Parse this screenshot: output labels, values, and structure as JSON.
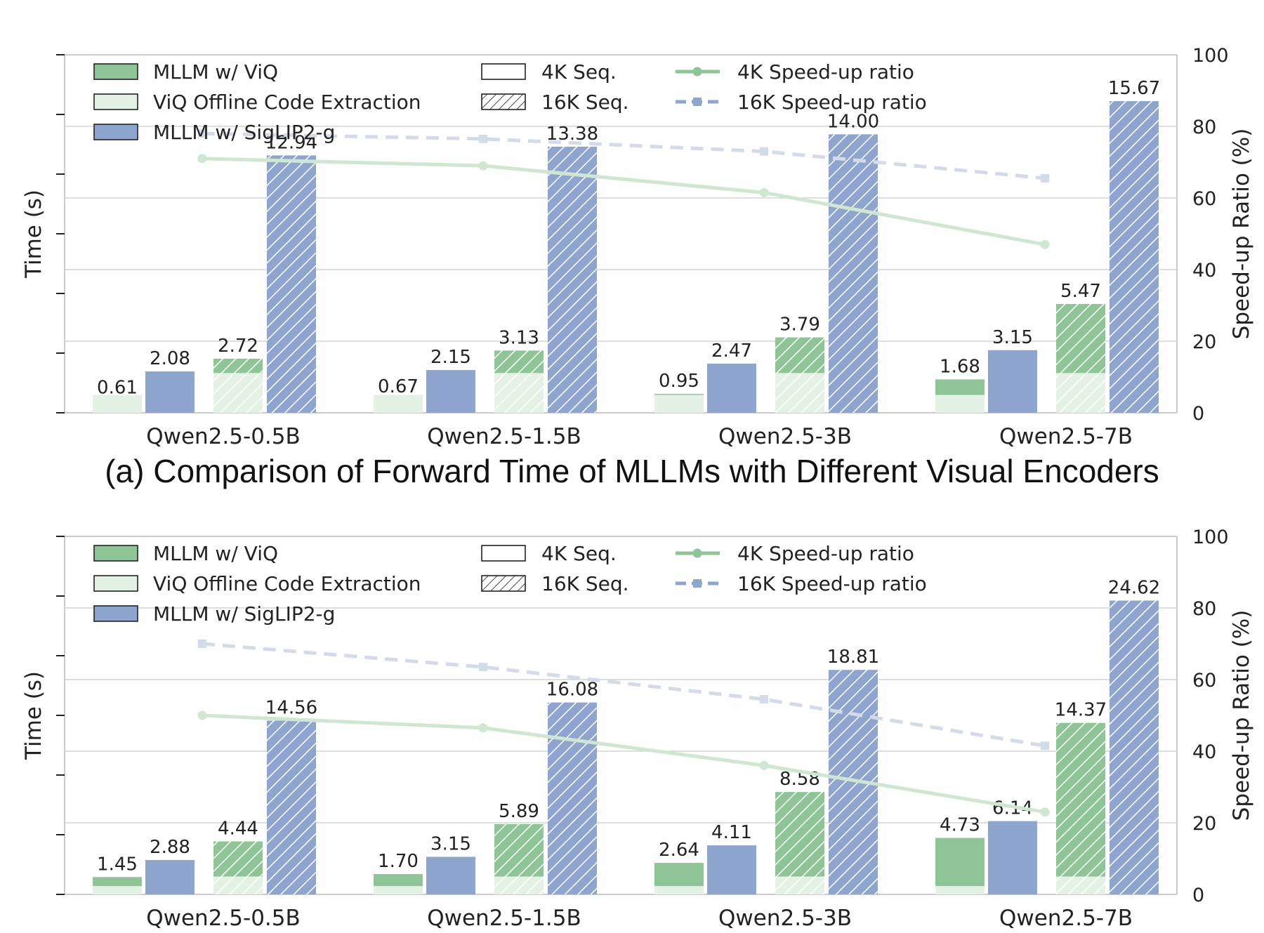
{
  "caption_a": "(a) Comparison of Forward Time of MLLMs with Different Visual Encoders",
  "colors": {
    "viq": "#8dc596",
    "viq_offline": "#e4f1e5",
    "siglip": "#8ea6cf",
    "line4k": "#cfe6d1",
    "line16k": "#d3dbe9",
    "grid": "#cccccc",
    "axis": "#bbbbbb"
  },
  "legend": {
    "viq": "MLLM w/ ViQ",
    "viq_offline": "ViQ Offline Code Extraction",
    "siglip": "MLLM w/ SigLIP2-g",
    "seq4k": "4K Seq.",
    "seq16k": "16K Seq.",
    "ratio4k": "4K Speed-up ratio",
    "ratio16k": "16K Speed-up ratio"
  },
  "chart_data": [
    {
      "type": "bar",
      "ylabel": "Time (s)",
      "y2label": "Speed-up Ratio (%)",
      "ylim": [
        0,
        18
      ],
      "y2lim": [
        0,
        100
      ],
      "y2ticks": [
        0,
        20,
        40,
        60,
        80,
        100
      ],
      "legend_position": "top-left",
      "categories": [
        "Qwen2.5-0.5B",
        "Qwen2.5-1.5B",
        "Qwen2.5-3B",
        "Qwen2.5-7B"
      ],
      "viq_4k": [
        0.61,
        0.67,
        0.95,
        1.68
      ],
      "siglip_4k": [
        2.08,
        2.15,
        2.47,
        3.15
      ],
      "viq_16k": [
        2.72,
        3.13,
        3.79,
        5.47
      ],
      "siglip_16k": [
        12.94,
        13.38,
        14.0,
        15.67
      ],
      "offline_4k": 0.9,
      "offline_16k": 2.0,
      "speedup_4k": [
        71,
        69,
        61.5,
        47
      ],
      "speedup_16k": [
        78,
        76.5,
        73,
        65.5
      ]
    },
    {
      "type": "bar",
      "ylabel": "Time (s)",
      "y2label": "Speed-up Ratio (%)",
      "ylim": [
        0,
        30
      ],
      "y2lim": [
        0,
        100
      ],
      "y2ticks": [
        0,
        20,
        40,
        60,
        80,
        100
      ],
      "legend_position": "top-left",
      "categories": [
        "Qwen2.5-0.5B",
        "Qwen2.5-1.5B",
        "Qwen2.5-3B",
        "Qwen2.5-7B"
      ],
      "viq_4k": [
        1.45,
        1.7,
        2.64,
        4.73
      ],
      "siglip_4k": [
        2.88,
        3.15,
        4.11,
        6.14
      ],
      "viq_16k": [
        4.44,
        5.89,
        8.58,
        14.37
      ],
      "siglip_16k": [
        14.56,
        16.08,
        18.81,
        24.62
      ],
      "offline_4k": 0.7,
      "offline_16k": 1.5,
      "speedup_4k": [
        50,
        46.5,
        36,
        23
      ],
      "speedup_16k": [
        70,
        63.5,
        54.5,
        41.5
      ]
    }
  ]
}
